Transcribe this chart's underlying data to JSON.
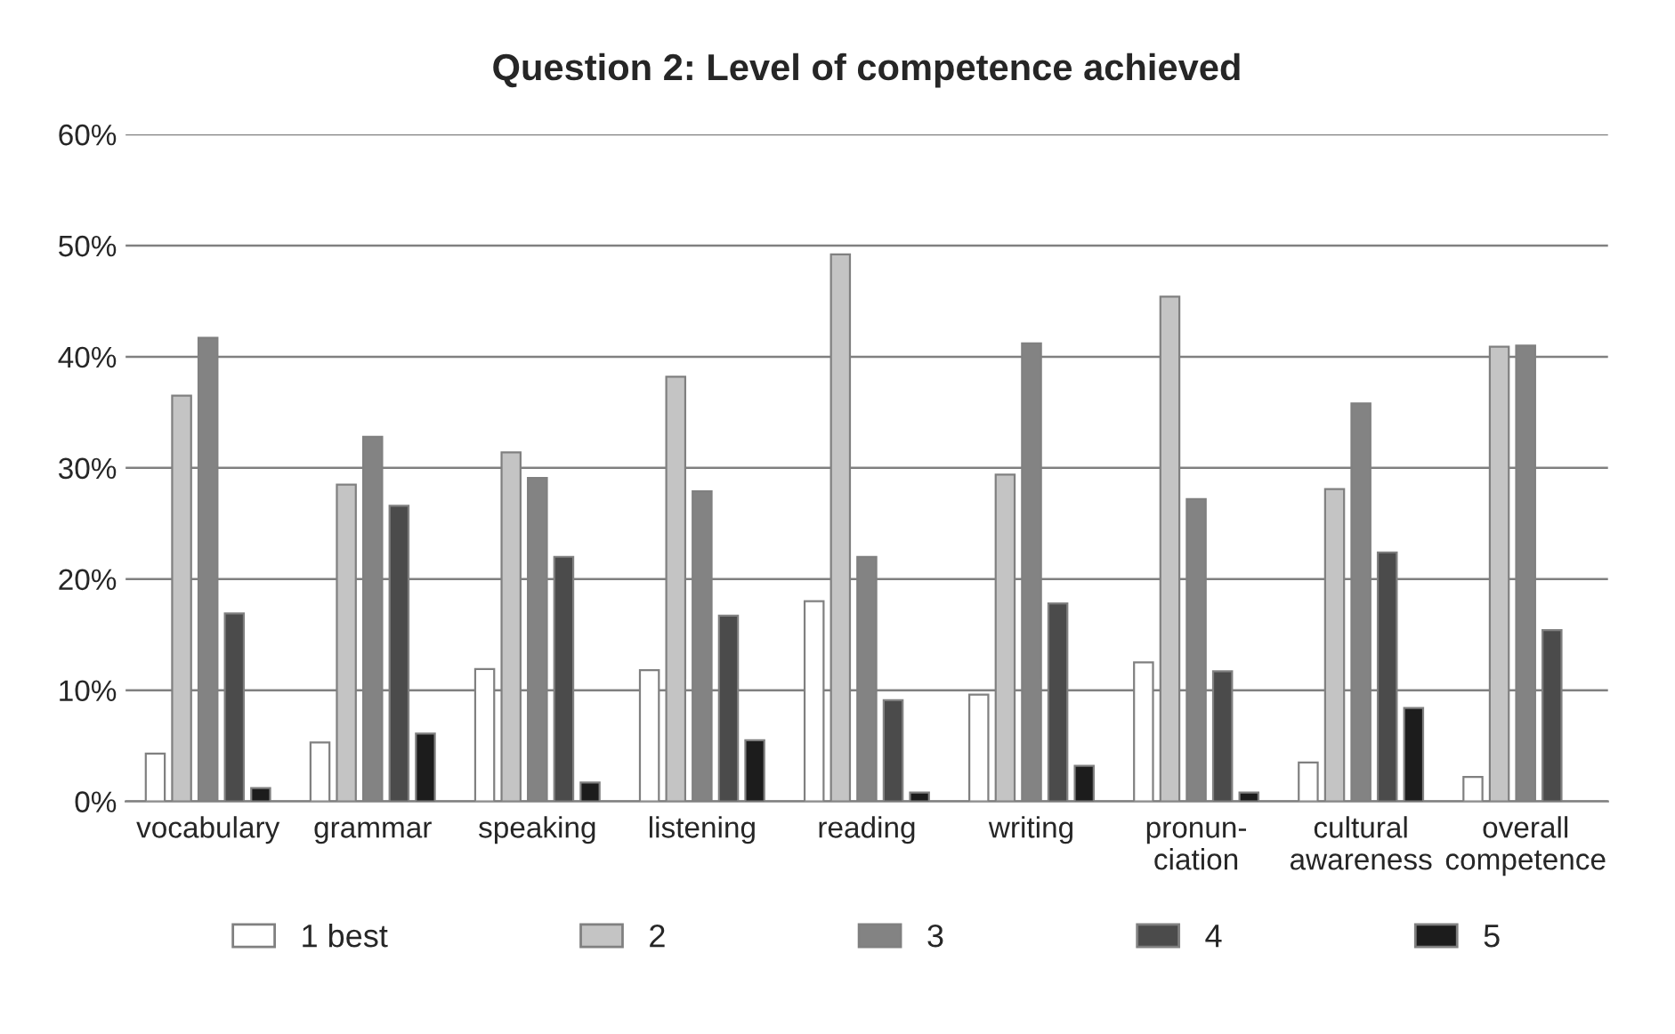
{
  "chart_data": {
    "type": "bar",
    "title": "Question 2: Level of competence achieved",
    "categories": [
      "vocabulary",
      "grammar",
      "speaking",
      "listening",
      "reading",
      "writing",
      "pronun-\nciation",
      "cultural\nawareness",
      "overall\ncompetence"
    ],
    "series": [
      {
        "name": "1 best",
        "color": "#ffffff",
        "values": [
          4.3,
          5.3,
          11.9,
          11.8,
          18.0,
          9.6,
          12.5,
          3.5,
          2.2
        ]
      },
      {
        "name": "2",
        "color": "#c4c4c4",
        "values": [
          36.5,
          28.5,
          31.4,
          38.2,
          49.2,
          29.4,
          45.4,
          28.1,
          40.9
        ]
      },
      {
        "name": "3",
        "color": "#838383",
        "values": [
          41.7,
          32.8,
          29.1,
          27.9,
          22.0,
          41.2,
          27.2,
          35.8,
          41.0
        ]
      },
      {
        "name": "4",
        "color": "#4b4b4b",
        "values": [
          16.9,
          26.6,
          22.0,
          16.7,
          9.1,
          17.8,
          11.7,
          22.4,
          15.4
        ]
      },
      {
        "name": "5",
        "color": "#1c1c1c",
        "values": [
          1.2,
          6.1,
          1.7,
          5.5,
          0.8,
          3.2,
          0.8,
          8.4,
          null
        ]
      }
    ],
    "ylim": [
      0,
      60
    ],
    "yticks": [
      {
        "value": 0,
        "label": "0%"
      },
      {
        "value": 10,
        "label": "10%"
      },
      {
        "value": 20,
        "label": "20%"
      },
      {
        "value": 30,
        "label": "30%"
      },
      {
        "value": 40,
        "label": "40%"
      },
      {
        "value": 50,
        "label": "50%"
      },
      {
        "value": 60,
        "label": "60%"
      }
    ],
    "grid": "y",
    "legend": "bottom"
  }
}
